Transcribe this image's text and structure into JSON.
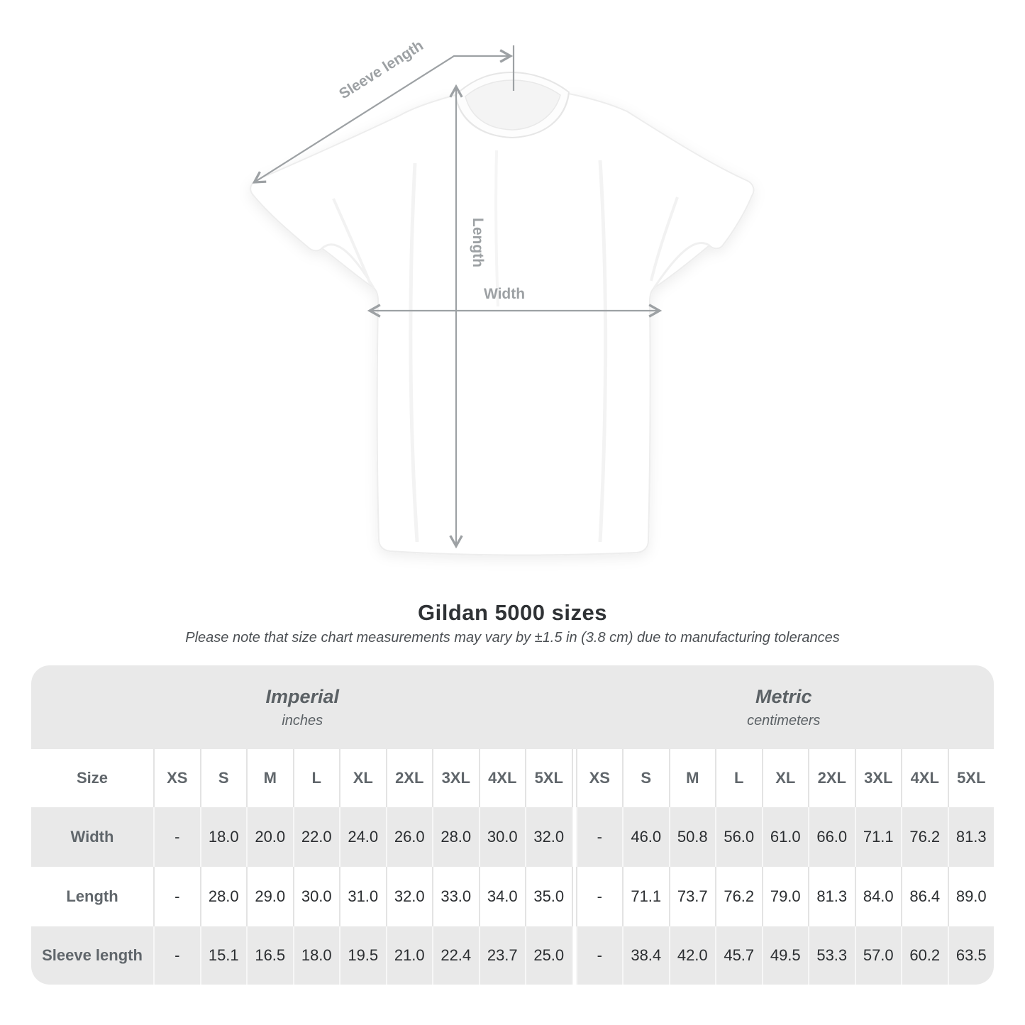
{
  "colors": {
    "band_gray": "#e9e9e9",
    "separator_on_white": "#e3e3e3",
    "separator_on_gray": "#f7f7f7",
    "heading_text": "#2f3235",
    "muted_text": "#5b6165",
    "value_text": "#2b2e31",
    "diagram_gray": "#9da1a4"
  },
  "diagram": {
    "labels": {
      "sleeve_length": "Sleeve length",
      "length": "Length",
      "width": "Width"
    }
  },
  "heading": {
    "title": "Gildan 5000 sizes",
    "note": "Please note that size chart measurements may vary by ±1.5 in (3.8 cm) due to manufacturing tolerances"
  },
  "chart_data": {
    "type": "table",
    "title": "Gildan 5000 sizes",
    "units_groups": [
      {
        "label": "Imperial",
        "sublabel": "inches"
      },
      {
        "label": "Metric",
        "sublabel": "centimeters"
      }
    ],
    "size_column_header": "Size",
    "sizes": [
      "XS",
      "S",
      "M",
      "L",
      "XL",
      "2XL",
      "3XL",
      "4XL",
      "5XL"
    ],
    "rows": [
      {
        "label": "Width",
        "imperial": [
          "-",
          "18.0",
          "20.0",
          "22.0",
          "24.0",
          "26.0",
          "28.0",
          "30.0",
          "32.0"
        ],
        "metric": [
          "-",
          "46.0",
          "50.8",
          "56.0",
          "61.0",
          "66.0",
          "71.1",
          "76.2",
          "81.3"
        ]
      },
      {
        "label": "Length",
        "imperial": [
          "-",
          "28.0",
          "29.0",
          "30.0",
          "31.0",
          "32.0",
          "33.0",
          "34.0",
          "35.0"
        ],
        "metric": [
          "-",
          "71.1",
          "73.7",
          "76.2",
          "79.0",
          "81.3",
          "84.0",
          "86.4",
          "89.0"
        ]
      },
      {
        "label": "Sleeve length",
        "imperial": [
          "-",
          "15.1",
          "16.5",
          "18.0",
          "19.5",
          "21.0",
          "22.4",
          "23.7",
          "25.0"
        ],
        "metric": [
          "-",
          "38.4",
          "42.0",
          "45.7",
          "49.5",
          "53.3",
          "57.0",
          "60.2",
          "63.5"
        ]
      }
    ]
  }
}
